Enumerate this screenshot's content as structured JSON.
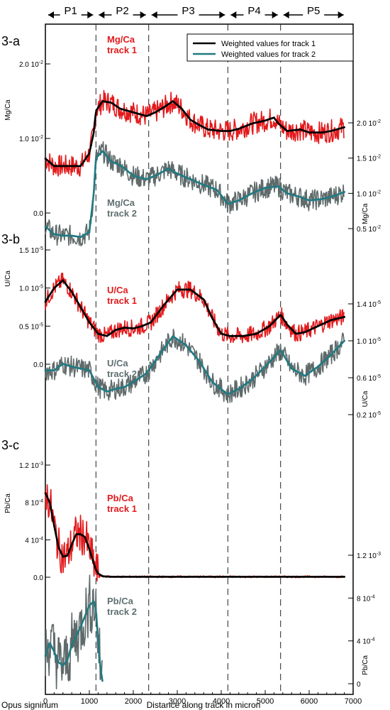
{
  "chart_data": {
    "type": "line",
    "title": "",
    "xlabel": "Distance along track in micron",
    "x_origin_label": "Opus signinum",
    "xlim": [
      0,
      7000
    ],
    "x_ticks": [
      "0",
      "1000",
      "2000",
      "3000",
      "4000",
      "5000",
      "6000",
      "7000"
    ],
    "periods": [
      {
        "label": "P1",
        "from": 0,
        "to": 1150
      },
      {
        "label": "P2",
        "from": 1150,
        "to": 2350
      },
      {
        "label": "P3",
        "from": 2350,
        "to": 4150
      },
      {
        "label": "P4",
        "from": 4150,
        "to": 5350
      },
      {
        "label": "P5",
        "from": 5350,
        "to": 6850
      }
    ],
    "boundaries": [
      1150,
      2350,
      4150,
      5350
    ],
    "legend": {
      "position": "top-right",
      "entries": [
        {
          "label": "Weighted values for track 1",
          "color": "#000000"
        },
        {
          "label": "Weighted values for track 2",
          "color": "#217a82"
        }
      ]
    },
    "colors": {
      "track1_raw": "#e31a1c",
      "track1_weighted": "#000000",
      "track2_raw": "#606a6a",
      "track2_weighted": "#217a82"
    },
    "panels": [
      {
        "id": "3-a",
        "left_axis": {
          "label": "Mg/Ca",
          "ticks": [
            "2.0 10-2",
            "1.0 10-2",
            "0.0"
          ],
          "values": [
            0.02,
            0.01,
            0.0
          ]
        },
        "right_axis": {
          "label": "Mg/Ca",
          "ticks": [
            "2.0 10-2",
            "1.5 10-2",
            "1.0 10-2",
            "0.5 10-2"
          ],
          "values": [
            0.02,
            0.015,
            0.01,
            0.005
          ]
        },
        "series": [
          {
            "name": "Mg/Ca track 1",
            "axis": "left",
            "x": [
              0,
              200,
              400,
              600,
              800,
              1000,
              1100,
              1150,
              1300,
              1500,
              1700,
              2000,
              2300,
              2500,
              2700,
              2900,
              3100,
              3300,
              3500,
              3700,
              4000,
              4200,
              4400,
              4700,
              5000,
              5200,
              5300,
              5500,
              5800,
              6000,
              6300,
              6500,
              6800
            ],
            "y": [
              0.0073,
              0.0063,
              0.0063,
              0.0063,
              0.0063,
              0.008,
              0.0108,
              0.0137,
              0.015,
              0.0148,
              0.014,
              0.0135,
              0.013,
              0.0135,
              0.0142,
              0.015,
              0.014,
              0.0125,
              0.0118,
              0.0112,
              0.011,
              0.011,
              0.0113,
              0.012,
              0.0124,
              0.0128,
              0.012,
              0.011,
              0.0112,
              0.0108,
              0.0108,
              0.011,
              0.0115
            ]
          },
          {
            "name": "Mg/Ca track 2",
            "axis": "right",
            "x": [
              0,
              200,
              400,
              600,
              800,
              1000,
              1100,
              1150,
              1300,
              1500,
              1700,
              2000,
              2300,
              2500,
              2800,
              3000,
              3300,
              3600,
              3900,
              4150,
              4400,
              4700,
              5000,
              5300,
              5500,
              5800,
              6000,
              6300,
              6500,
              6800
            ],
            "y": [
              0.0053,
              0.0042,
              0.004,
              0.004,
              0.0038,
              0.0045,
              0.01,
              0.015,
              0.016,
              0.0145,
              0.014,
              0.0125,
              0.012,
              0.0125,
              0.0135,
              0.0128,
              0.012,
              0.0112,
              0.0105,
              0.0085,
              0.009,
              0.01,
              0.0108,
              0.011,
              0.01,
              0.0095,
              0.009,
              0.0092,
              0.0095,
              0.0102
            ]
          }
        ]
      },
      {
        "id": "3-b",
        "left_axis": {
          "label": "U/Ca",
          "ticks": [
            "1.5 10-5",
            "1.0 10-5",
            "0.5 10-5",
            "0.0"
          ],
          "values": [
            1.5e-05,
            1e-05,
            5e-06,
            0.0
          ]
        },
        "right_axis": {
          "label": "U/Ca",
          "ticks": [
            "1.4 10-5",
            "1.0 10-5",
            "0.6 10-5",
            "0.2 10-5"
          ],
          "values": [
            1.4e-05,
            1e-05,
            6e-06,
            2e-06
          ]
        },
        "series": [
          {
            "name": "U/Ca track 1",
            "axis": "left",
            "x": [
              0,
              200,
              400,
              600,
              800,
              1000,
              1200,
              1400,
              1600,
              1800,
              2000,
              2200,
              2400,
              2700,
              3000,
              3300,
              3600,
              3800,
              4000,
              4200,
              4500,
              4800,
              5100,
              5350,
              5500,
              5700,
              5900,
              6200,
              6500,
              6800
            ],
            "y": [
              8.2e-06,
              1e-05,
              1.1e-05,
              9.5e-06,
              7.5e-06,
              5.5e-06,
              4e-06,
              3.7e-06,
              4.5e-06,
              4.8e-06,
              4.7e-06,
              5e-06,
              5.5e-06,
              7.8e-06,
              9.8e-06,
              9.8e-06,
              8.5e-06,
              6e-06,
              4e-06,
              3.7e-06,
              3.7e-06,
              4e-06,
              5e-06,
              6.5e-06,
              5.2e-06,
              4e-06,
              4.2e-06,
              5e-06,
              5.8e-06,
              6.2e-06
            ]
          },
          {
            "name": "U/Ca track 2",
            "axis": "right",
            "x": [
              0,
              200,
              400,
              600,
              800,
              1000,
              1200,
              1400,
              1600,
              1800,
              2000,
              2300,
              2600,
              2900,
              3200,
              3500,
              3800,
              4150,
              4400,
              4700,
              5000,
              5350,
              5600,
              5900,
              6200,
              6500,
              6800
            ],
            "y": [
              6.8e-06,
              6.8e-06,
              7.5e-06,
              7.2e-06,
              7e-06,
              6.8e-06,
              5e-06,
              4.5e-06,
              4.8e-06,
              5e-06,
              5.5e-06,
              6.5e-06,
              8.5e-06,
              1.05e-05,
              9.5e-06,
              7.8e-06,
              5.5e-06,
              4.2e-06,
              4.8e-06,
              5.8e-06,
              7.2e-06,
              9e-06,
              7e-06,
              6.2e-06,
              7.2e-06,
              8.5e-06,
              1e-05
            ]
          }
        ]
      },
      {
        "id": "3-c",
        "left_axis": {
          "label": "Pb/Ca",
          "ticks": [
            "1.2 10-3",
            "8 10-4",
            "4 10-4",
            "0.0"
          ],
          "values": [
            0.0012,
            0.0008,
            0.0004,
            0.0
          ]
        },
        "right_axis": {
          "label": "Pb/Ca",
          "ticks": [
            "1.2 10-3",
            "8 10-4",
            "4 10-4",
            "0"
          ],
          "values": [
            0.0012,
            0.0008,
            0.0004,
            0.0
          ]
        },
        "series": [
          {
            "name": "Pb/Ca track 1",
            "axis": "left",
            "x": [
              0,
              100,
              200,
              300,
              400,
              500,
              600,
              700,
              800,
              900,
              1000,
              1100,
              1150,
              1200,
              1300,
              1500,
              2000,
              3000,
              4000,
              5000,
              6000,
              6800
            ],
            "y": [
              0.0009,
              0.0008,
              0.00055,
              0.00032,
              0.00022,
              0.00023,
              0.00035,
              0.00046,
              0.00046,
              0.00043,
              0.0003,
              0.00015,
              8e-05,
              4e-05,
              1e-05,
              5e-06,
              5e-06,
              5e-06,
              5e-06,
              5e-06,
              5e-06,
              5e-06
            ]
          },
          {
            "name": "Pb/Ca track 2",
            "axis": "right",
            "x": [
              0,
              100,
              200,
              300,
              400,
              500,
              600,
              700,
              800,
              900,
              1000,
              1100,
              1150,
              1200,
              1250,
              1300
            ],
            "y": [
              0.00026,
              0.00038,
              0.0003,
              0.0002,
              0.00017,
              0.00022,
              0.00036,
              0.00044,
              0.00053,
              0.00063,
              0.00073,
              0.00077,
              0.0007,
              0.0004,
              0.00015,
              2e-05
            ]
          }
        ]
      }
    ],
    "series_labels": [
      {
        "panel": 0,
        "lines": [
          "Mg/Ca",
          "track 1"
        ],
        "style": "red"
      },
      {
        "panel": 0,
        "lines": [
          "Mg/Ca",
          "track 2"
        ],
        "style": "gray"
      },
      {
        "panel": 1,
        "lines": [
          "U/Ca",
          "track 1"
        ],
        "style": "red"
      },
      {
        "panel": 1,
        "lines": [
          "U/Ca",
          "track 2"
        ],
        "style": "gray"
      },
      {
        "panel": 2,
        "lines": [
          "Pb/Ca",
          "track 1"
        ],
        "style": "red"
      },
      {
        "panel": 2,
        "lines": [
          "Pb/Ca",
          "track 2"
        ],
        "style": "gray"
      }
    ]
  }
}
